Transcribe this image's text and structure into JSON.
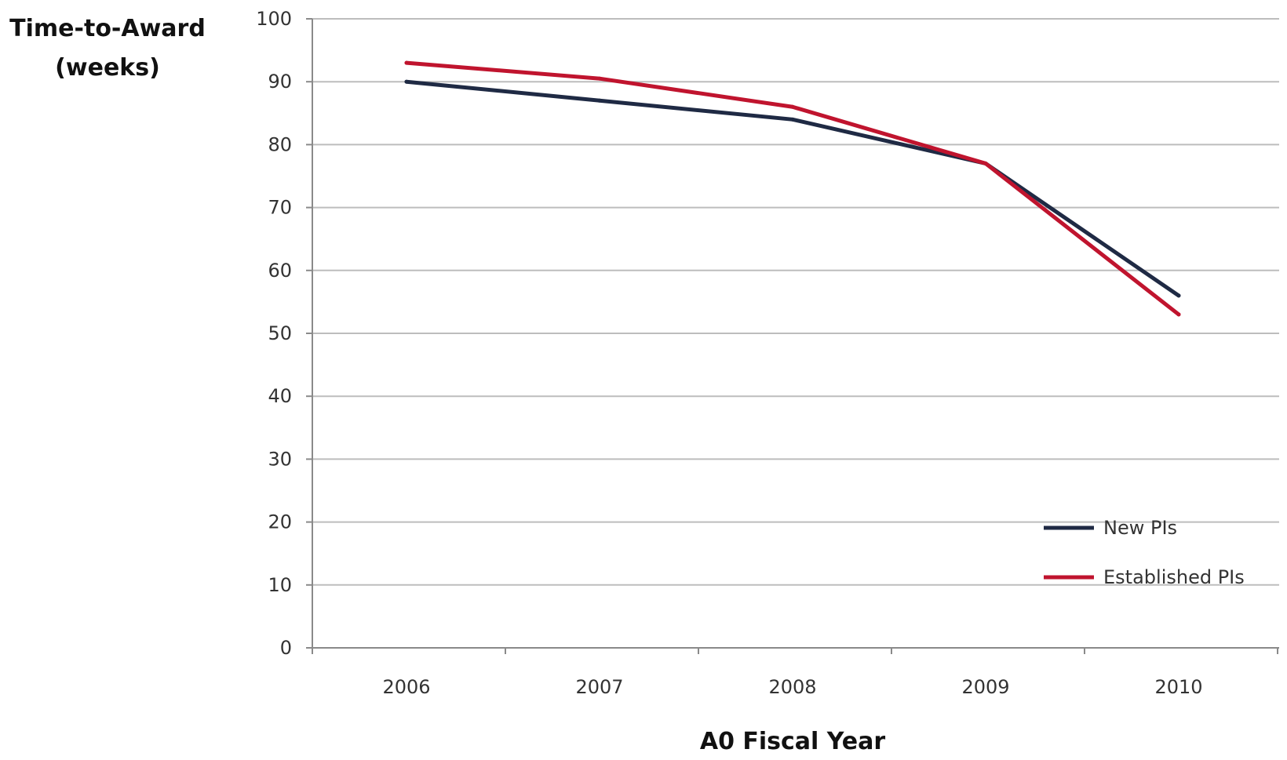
{
  "chart_data": {
    "type": "line",
    "title": "",
    "ylabel_lines": [
      "Time-to-Award",
      "(weeks)"
    ],
    "xlabel": "A0 Fiscal Year",
    "categories": [
      "2006",
      "2007",
      "2008",
      "2009",
      "2010"
    ],
    "ylim": [
      0,
      100
    ],
    "yticks": [
      "0",
      "10",
      "20",
      "30",
      "40",
      "50",
      "60",
      "70",
      "80",
      "90",
      "100"
    ],
    "grid": true,
    "legend_position": "bottom-right",
    "series": [
      {
        "name": "New PIs",
        "color": "#1f2a44",
        "values": [
          90,
          87,
          84,
          77,
          56
        ]
      },
      {
        "name": "Established PIs",
        "color": "#c0142e",
        "values": [
          93,
          90.5,
          86,
          77,
          53
        ]
      }
    ]
  }
}
